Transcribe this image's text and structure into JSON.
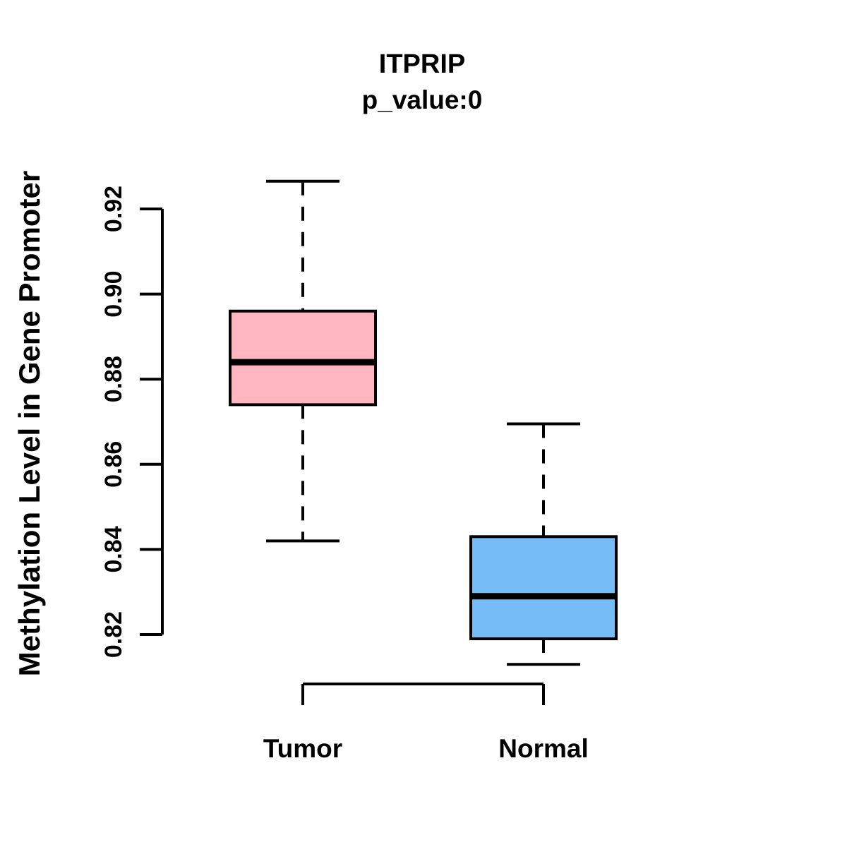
{
  "chart_data": {
    "type": "boxplot",
    "title": "ITPRIP",
    "subtitle": "p_value:0",
    "ylabel": "Methylation Level in Gene Promoter",
    "xlabel": "",
    "categories": [
      "Tumor",
      "Normal"
    ],
    "y_ticks": [
      "0.82",
      "0.84",
      "0.86",
      "0.88",
      "0.90",
      "0.92"
    ],
    "ylim": [
      0.808,
      0.932
    ],
    "grid": false,
    "legend": "none",
    "line_color": "#000000",
    "series": [
      {
        "name": "Tumor",
        "fill": "#FFB6C1",
        "stroke": "#000000",
        "whisker_low": 0.842,
        "q1": 0.874,
        "median": 0.884,
        "q3": 0.896,
        "whisker_high": 0.9265
      },
      {
        "name": "Normal",
        "fill": "#76BDF8",
        "stroke": "#000000",
        "whisker_low": 0.813,
        "q1": 0.819,
        "median": 0.829,
        "q3": 0.843,
        "whisker_high": 0.8695
      }
    ]
  }
}
